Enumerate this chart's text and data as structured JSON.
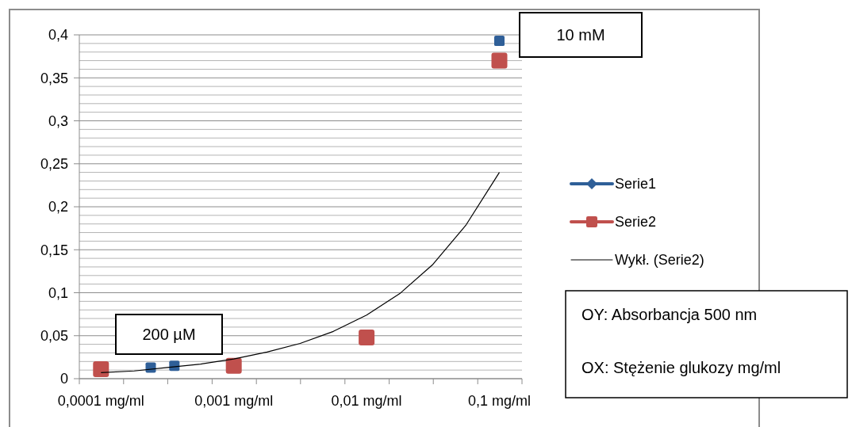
{
  "chart_data": {
    "type": "scatter",
    "log": "x",
    "xlim": [
      6.87e-05,
      0.148
    ],
    "xticks": [
      {
        "value": 6.87e-05,
        "label": null
      },
      {
        "value": 0.0001,
        "label": "0,0001 mg/ml"
      },
      {
        "value": 0.000148,
        "label": null
      },
      {
        "value": 0.000318,
        "label": null
      },
      {
        "value": 0.000687,
        "label": null
      },
      {
        "value": 0.001,
        "label": "0,001 mg/ml"
      },
      {
        "value": 0.00148,
        "label": null
      },
      {
        "value": 0.00318,
        "label": null
      },
      {
        "value": 0.00687,
        "label": null
      },
      {
        "value": 0.01,
        "label": "0,01 mg/ml"
      },
      {
        "value": 0.0148,
        "label": null
      },
      {
        "value": 0.0318,
        "label": null
      },
      {
        "value": 0.0687,
        "label": null
      },
      {
        "value": 0.1,
        "label": "0,1 mg/ml"
      },
      {
        "value": 0.148,
        "label": null
      }
    ],
    "ylim": [
      0,
      0.4
    ],
    "yticks": [
      {
        "value": 0,
        "label": "0"
      },
      {
        "value": 0.01,
        "label": null
      },
      {
        "value": 0.02,
        "label": null
      },
      {
        "value": 0.03,
        "label": null
      },
      {
        "value": 0.04,
        "label": null
      },
      {
        "value": 0.05,
        "label": "0,05"
      },
      {
        "value": 0.06,
        "label": null
      },
      {
        "value": 0.07,
        "label": null
      },
      {
        "value": 0.08,
        "label": null
      },
      {
        "value": 0.09,
        "label": null
      },
      {
        "value": 0.1,
        "label": "0,1"
      },
      {
        "value": 0.11,
        "label": null
      },
      {
        "value": 0.12,
        "label": null
      },
      {
        "value": 0.13,
        "label": null
      },
      {
        "value": 0.14,
        "label": null
      },
      {
        "value": 0.15,
        "label": "0,15"
      },
      {
        "value": 0.16,
        "label": null
      },
      {
        "value": 0.17,
        "label": null
      },
      {
        "value": 0.18,
        "label": null
      },
      {
        "value": 0.19,
        "label": null
      },
      {
        "value": 0.2,
        "label": "0,2"
      },
      {
        "value": 0.21,
        "label": null
      },
      {
        "value": 0.22,
        "label": null
      },
      {
        "value": 0.23,
        "label": null
      },
      {
        "value": 0.24,
        "label": null
      },
      {
        "value": 0.25,
        "label": "0,25"
      },
      {
        "value": 0.26,
        "label": null
      },
      {
        "value": 0.27,
        "label": null
      },
      {
        "value": 0.28,
        "label": null
      },
      {
        "value": 0.29,
        "label": null
      },
      {
        "value": 0.3,
        "label": "0,3"
      },
      {
        "value": 0.31,
        "label": null
      },
      {
        "value": 0.32,
        "label": null
      },
      {
        "value": 0.33,
        "label": null
      },
      {
        "value": 0.34,
        "label": null
      },
      {
        "value": 0.35,
        "label": "0,35"
      },
      {
        "value": 0.36,
        "label": null
      },
      {
        "value": 0.37,
        "label": null
      },
      {
        "value": 0.38,
        "label": null
      },
      {
        "value": 0.39,
        "label": null
      },
      {
        "value": 0.4,
        "label": "0,4"
      }
    ],
    "grid": "y",
    "legend": "right",
    "series": [
      {
        "name": "Serie1",
        "type": "scatter",
        "marker": "square",
        "color": "#2f5f98",
        "x": [
          0.000237,
          0.000357,
          0.1
        ],
        "values": [
          0.013,
          0.015,
          0.393
        ]
      },
      {
        "name": "Serie2",
        "type": "scatter",
        "marker": "square",
        "color": "#c0504d",
        "x": [
          0.0001,
          0.001,
          0.01,
          0.1
        ],
        "values": [
          0.011,
          0.015,
          0.048,
          0.37
        ]
      },
      {
        "name": "Wykł. (Serie2)",
        "type": "line",
        "marker": "none",
        "line_style": "solid",
        "color": "#000000",
        "x": [
          0.0001,
          0.000178,
          0.000316,
          0.000562,
          0.001,
          0.00178,
          0.00316,
          0.00562,
          0.01,
          0.0178,
          0.0316,
          0.0562,
          0.1
        ],
        "values": [
          0.007,
          0.009,
          0.013,
          0.017,
          0.023,
          0.031,
          0.041,
          0.055,
          0.074,
          0.099,
          0.133,
          0.179,
          0.24
        ]
      }
    ],
    "annotations": [
      "10 mM",
      "200 µM",
      "OY: Absorbancja 500 nm",
      "OX: Stężenie glukozy mg/ml"
    ]
  }
}
